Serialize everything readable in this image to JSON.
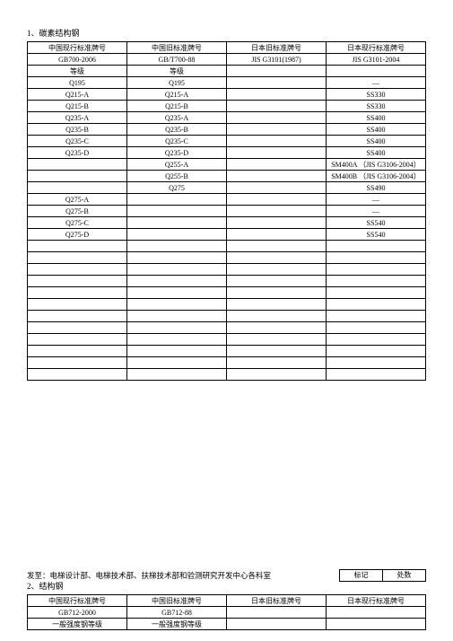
{
  "section1": {
    "title": "1、碳素结构钢",
    "columns": [
      {
        "h1": "中国现行标准牌号",
        "h2": "GB700-2006",
        "h3": "等级"
      },
      {
        "h1": "中国旧标准牌号",
        "h2": "GB/T700-88",
        "h3": "等级"
      },
      {
        "h1": "日本旧标准牌号",
        "h2": "JIS G3101(1987)",
        "h3": ""
      },
      {
        "h1": "日本现行标准牌号",
        "h2": "JIS G3101-2004",
        "h3": ""
      }
    ],
    "rows": [
      [
        "Q195",
        "Q195",
        "",
        "—"
      ],
      [
        "Q215-A",
        "Q215-A",
        "",
        "SS330"
      ],
      [
        "Q215-B",
        "Q215-B",
        "",
        "SS330"
      ],
      [
        "Q235-A",
        "Q235-A",
        "",
        "SS400"
      ],
      [
        "Q235-B",
        "Q235-B",
        "",
        "SS400"
      ],
      [
        "Q235-C",
        "Q235-C",
        "",
        "SS400"
      ],
      [
        "Q235-D",
        "Q235-D",
        "",
        "SS400"
      ],
      [
        "",
        "Q255-A",
        "",
        "SM400A （JIS G3106-2004）"
      ],
      [
        "",
        "Q255-B",
        "",
        "SM400B （JIS G3106-2004）"
      ],
      [
        "",
        "Q275",
        "",
        "SS490"
      ],
      [
        "Q275-A",
        "",
        "",
        "—"
      ],
      [
        "Q275-B",
        "",
        "",
        "—"
      ],
      [
        "Q275-C",
        "",
        "",
        "SS540"
      ],
      [
        "Q275-D",
        "",
        "",
        "SS540"
      ],
      [
        "",
        "",
        "",
        ""
      ],
      [
        "",
        "",
        "",
        ""
      ],
      [
        "",
        "",
        "",
        ""
      ],
      [
        "",
        "",
        "",
        ""
      ],
      [
        "",
        "",
        "",
        ""
      ],
      [
        "",
        "",
        "",
        ""
      ],
      [
        "",
        "",
        "",
        ""
      ],
      [
        "",
        "",
        "",
        ""
      ],
      [
        "",
        "",
        "",
        ""
      ],
      [
        "",
        "",
        "",
        ""
      ],
      [
        "",
        "",
        "",
        ""
      ],
      [
        "",
        "",
        "",
        ""
      ]
    ]
  },
  "distribution": "发至：电梯设计部、电梯技术部、扶梯技术部和验测研究开发中心各科室",
  "meta": {
    "label_mark": "标记",
    "label_disp": "处数"
  },
  "section2": {
    "title": "2、结构钢",
    "columns": [
      {
        "h1": "中国现行标准牌号",
        "h2": "GB712-2000",
        "h3": "一般强度钢等级"
      },
      {
        "h1": "中国旧标准牌号",
        "h2": "GB712-88",
        "h3": "一般强度钢等级"
      },
      {
        "h1": "日本旧标准牌号",
        "h2": "",
        "h3": ""
      },
      {
        "h1": "日本现行标准牌号",
        "h2": "",
        "h3": ""
      }
    ]
  }
}
